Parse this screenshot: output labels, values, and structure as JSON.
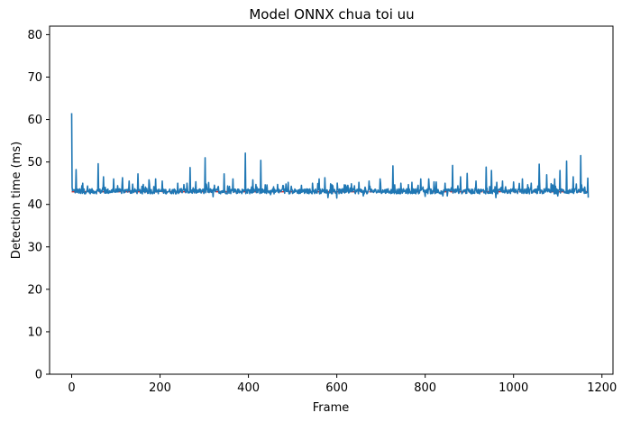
{
  "chart_data": {
    "type": "line",
    "title": "Model ONNX chua toi uu",
    "xlabel": "Frame",
    "ylabel": "Detection time (ms)",
    "xlim": [
      -50,
      1225
    ],
    "ylim": [
      0,
      82
    ],
    "xticks": [
      0,
      200,
      400,
      600,
      800,
      1000,
      1200
    ],
    "yticks": [
      0,
      10,
      20,
      30,
      40,
      50,
      60,
      70,
      80
    ],
    "grid": false,
    "series": [
      {
        "color": "#1f77b4",
        "x_range": [
          0,
          1169
        ],
        "baseline": 43.1,
        "start_values": [
          61.5,
          44.0,
          43.2,
          43.5
        ],
        "spikes": [
          [
            10,
            48.2
          ],
          [
            25,
            45.0
          ],
          [
            60,
            49.6
          ],
          [
            72,
            46.5
          ],
          [
            95,
            46.0
          ],
          [
            115,
            46.3
          ],
          [
            130,
            45.5
          ],
          [
            150,
            47.2
          ],
          [
            175,
            45.8
          ],
          [
            190,
            46.0
          ],
          [
            205,
            45.5
          ],
          [
            240,
            45.0
          ],
          [
            268,
            48.7
          ],
          [
            302,
            51.0
          ],
          [
            320,
            45.5
          ],
          [
            345,
            47.2
          ],
          [
            365,
            46.0
          ],
          [
            393,
            52.1
          ],
          [
            410,
            45.8
          ],
          [
            428,
            50.4
          ],
          [
            450,
            45.0
          ],
          [
            485,
            44.8
          ],
          [
            520,
            44.5
          ],
          [
            545,
            45.0
          ],
          [
            560,
            46.0
          ],
          [
            573,
            46.3
          ],
          [
            600,
            49.2
          ],
          [
            625,
            44.5
          ],
          [
            650,
            45.2
          ],
          [
            673,
            45.5
          ],
          [
            698,
            46.0
          ],
          [
            727,
            49.1
          ],
          [
            745,
            45.0
          ],
          [
            770,
            45.2
          ],
          [
            790,
            46.0
          ],
          [
            808,
            46.0
          ],
          [
            825,
            45.3
          ],
          [
            845,
            45.0
          ],
          [
            862,
            49.2
          ],
          [
            880,
            46.5
          ],
          [
            895,
            47.3
          ],
          [
            915,
            45.5
          ],
          [
            938,
            48.8
          ],
          [
            950,
            48.0
          ],
          [
            975,
            45.5
          ],
          [
            1000,
            45.3
          ],
          [
            1020,
            46.0
          ],
          [
            1040,
            45.0
          ],
          [
            1058,
            49.5
          ],
          [
            1075,
            47.0
          ],
          [
            1093,
            46.0
          ],
          [
            1105,
            48.0
          ],
          [
            1120,
            50.2
          ],
          [
            1135,
            46.5
          ],
          [
            1152,
            51.5
          ],
          [
            1168,
            46.2
          ]
        ],
        "dips": [
          [
            20,
            42.6
          ],
          [
            160,
            42.5
          ],
          [
            320,
            41.8
          ],
          [
            450,
            42.3
          ],
          [
            580,
            41.6
          ],
          [
            600,
            41.5
          ],
          [
            660,
            42.0
          ],
          [
            800,
            41.9
          ],
          [
            840,
            42.0
          ],
          [
            850,
            42.0
          ],
          [
            960,
            41.6
          ],
          [
            1100,
            42.0
          ],
          [
            1169,
            41.6
          ]
        ]
      },
      {
        "color": "#d62728",
        "style": "dashed",
        "x": [
          0,
          1169
        ],
        "y": [
          43.0,
          43.0
        ]
      }
    ]
  }
}
